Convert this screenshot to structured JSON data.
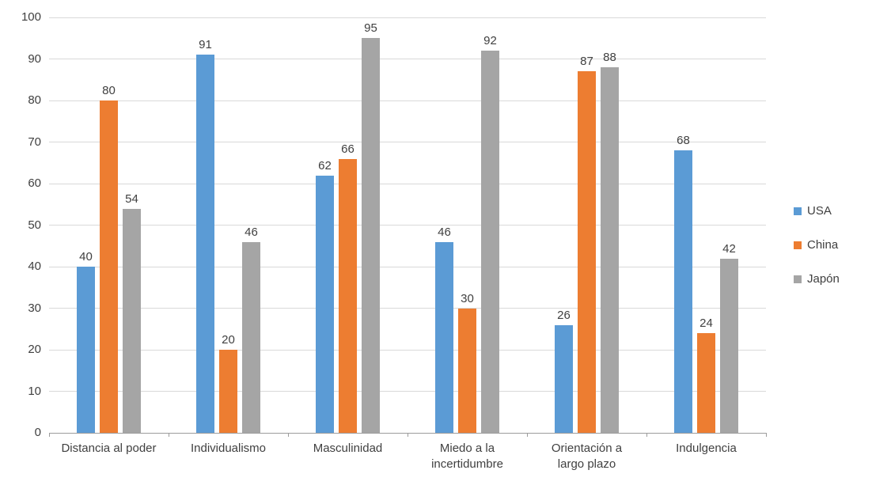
{
  "chart_data": {
    "type": "bar",
    "title": "",
    "xlabel": "",
    "ylabel": "",
    "categories": [
      "Distancia al poder",
      "Individualismo",
      "Masculinidad",
      "Miedo a la\nincertidumbre",
      "Orientación a\nlargo plazo",
      "Indulgencia"
    ],
    "series": [
      {
        "name": "USA",
        "color": "#5B9BD5",
        "values": [
          40,
          91,
          62,
          46,
          26,
          68
        ]
      },
      {
        "name": "China",
        "color": "#ED7D31",
        "values": [
          80,
          20,
          66,
          30,
          87,
          24
        ]
      },
      {
        "name": "Japón",
        "color": "#A5A5A5",
        "values": [
          54,
          46,
          95,
          92,
          88,
          42
        ]
      }
    ],
    "ylim": [
      0,
      100
    ],
    "ytick_step": 10,
    "ytick_labels": [
      "0",
      "10",
      "20",
      "30",
      "40",
      "50",
      "60",
      "70",
      "80",
      "90",
      "100"
    ],
    "grid": true,
    "legend_position": "right",
    "data_labels": true
  },
  "colors": {
    "background": "#FFFFFF",
    "gridline": "#D9D9D9",
    "axis_line": "#9C9C9C",
    "text": "#404040"
  }
}
